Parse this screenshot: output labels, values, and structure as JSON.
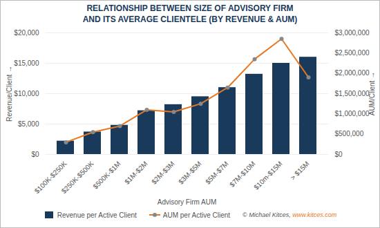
{
  "chart_data": {
    "type": "bar",
    "title": "RELATIONSHIP BETWEEN SIZE OF ADVISORY FIRM\nAND ITS AVERAGE CLIENTELE (BY REVENUE & AUM)",
    "xlabel": "Advisory Firm AUM",
    "ylabel": "Revenue/Client",
    "y2label": "AUM/Client",
    "categories": [
      "$100K-$250K",
      "$250K-$500K",
      "$500K-$1M",
      "$1M-$2M",
      "$2M-$3M",
      "$3M-$5M",
      "$5M-$7M",
      "$7M-$10M",
      "$10m-$15M",
      "> $15M"
    ],
    "series": [
      {
        "name": "Revenue per Active Client",
        "type": "bar",
        "color": "#1a3a5c",
        "values": [
          2200,
          3700,
          4800,
          7200,
          8200,
          9500,
          11000,
          13200,
          15000,
          16000
        ]
      },
      {
        "name": "AUM per Active Client",
        "type": "line",
        "color": "#e87722",
        "marker": "circle",
        "axis": "y2",
        "values": [
          300000,
          550000,
          700000,
          1100000,
          1050000,
          1250000,
          1650000,
          2350000,
          2850000,
          1900000
        ]
      }
    ],
    "ylim": [
      0,
      20000
    ],
    "yticks": [
      {
        "value": 0,
        "label": "$0"
      },
      {
        "value": 5000,
        "label": "$5,000"
      },
      {
        "value": 10000,
        "label": "$10,000"
      },
      {
        "value": 15000,
        "label": "$15,000"
      },
      {
        "value": 20000,
        "label": "$20,000"
      }
    ],
    "y2lim": [
      0,
      3000000
    ],
    "y2ticks": [
      {
        "value": 0,
        "label": "$0"
      },
      {
        "value": 500000,
        "label": "$500,000"
      },
      {
        "value": 1000000,
        "label": "$1,000,000"
      },
      {
        "value": 1500000,
        "label": "$1,500,000"
      },
      {
        "value": 2000000,
        "label": "$2,000,000"
      },
      {
        "value": 2500000,
        "label": "$2,500,000"
      },
      {
        "value": 3000000,
        "label": "$3,000,000"
      }
    ],
    "grid": true,
    "legend": "bottom",
    "annotations": [
      "© Michael Kitces,",
      "www.kitces.com"
    ]
  }
}
